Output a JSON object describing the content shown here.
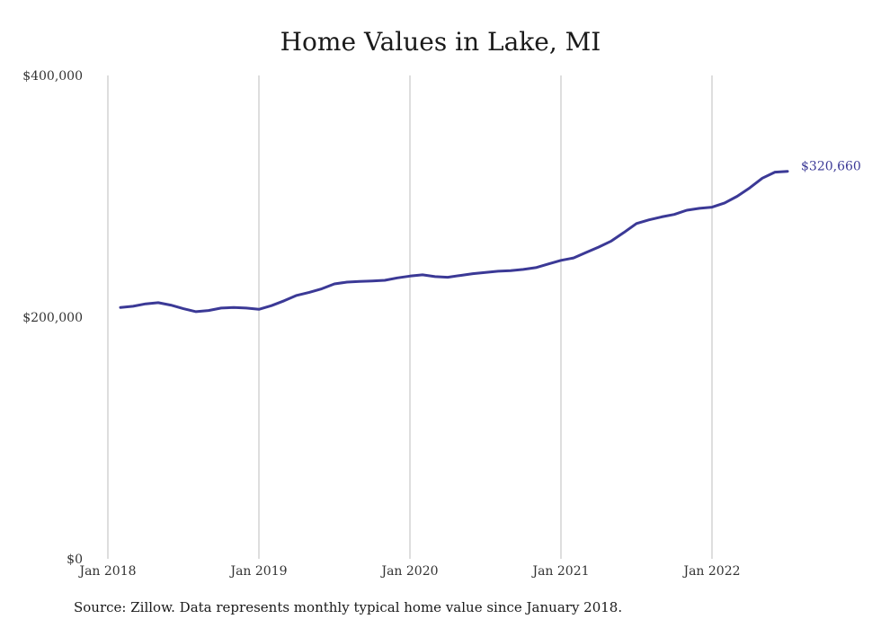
{
  "chart_data": {
    "type": "line",
    "title": "Home Values in Lake, MI",
    "xlabel": "",
    "ylabel": "",
    "ylim": [
      0,
      400000
    ],
    "xlim": [
      "2018-01",
      "2022-08"
    ],
    "y_ticks": [
      {
        "value": 0,
        "label": "$0"
      },
      {
        "value": 200000,
        "label": "$200,000"
      },
      {
        "value": 400000,
        "label": "$400,000"
      }
    ],
    "x_ticks": [
      {
        "value": "2018-01",
        "label": "Jan 2018"
      },
      {
        "value": "2019-01",
        "label": "Jan 2019"
      },
      {
        "value": "2020-01",
        "label": "Jan 2020"
      },
      {
        "value": "2021-01",
        "label": "Jan 2021"
      },
      {
        "value": "2022-01",
        "label": "Jan 2022"
      }
    ],
    "grid": "vertical",
    "line_color": "#3b3996",
    "end_label": "$320,660",
    "series": [
      {
        "x": [
          "2018-02",
          "2018-03",
          "2018-04",
          "2018-05",
          "2018-06",
          "2018-07",
          "2018-08",
          "2018-09",
          "2018-10",
          "2018-11",
          "2018-12",
          "2019-01",
          "2019-02",
          "2019-03",
          "2019-04",
          "2019-05",
          "2019-06",
          "2019-07",
          "2019-08",
          "2019-09",
          "2019-10",
          "2019-11",
          "2019-12",
          "2020-01",
          "2020-02",
          "2020-03",
          "2020-04",
          "2020-05",
          "2020-06",
          "2020-07",
          "2020-08",
          "2020-09",
          "2020-10",
          "2020-11",
          "2020-12",
          "2021-01",
          "2021-02",
          "2021-03",
          "2021-04",
          "2021-05",
          "2021-06",
          "2021-07",
          "2021-08",
          "2021-09",
          "2021-10",
          "2021-11",
          "2021-12",
          "2022-01",
          "2022-02",
          "2022-03",
          "2022-04",
          "2022-05",
          "2022-06",
          "2022-07"
        ],
        "values": [
          208000,
          209000,
          211000,
          212000,
          210000,
          207000,
          204500,
          205500,
          207500,
          208000,
          207500,
          206500,
          209500,
          213500,
          218000,
          220500,
          223500,
          227500,
          229000,
          229500,
          230000,
          230500,
          232500,
          234000,
          235000,
          233500,
          233000,
          234500,
          236000,
          237000,
          238000,
          238500,
          239500,
          241000,
          244000,
          247000,
          249000,
          253500,
          258000,
          263000,
          270000,
          277500,
          280500,
          283000,
          285000,
          288500,
          290000,
          291000,
          294500,
          300000,
          307000,
          315000,
          320000,
          320660
        ]
      }
    ]
  },
  "source": "Source: Zillow. Data represents monthly typical home value since January 2018."
}
